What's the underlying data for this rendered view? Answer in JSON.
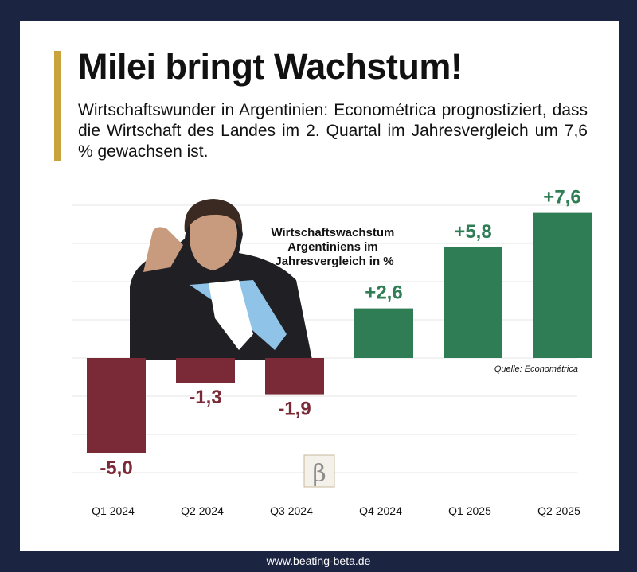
{
  "headline": "Milei bringt Wachstum!",
  "lede": "Wirtschaftswunder in Argentinien: Econométrica prognostiziert, dass die Wirtschaft des Landes im 2. Quartal im Jahresvergleich um 7,6 % gewachsen ist.",
  "footer": "www.beating-beta.de",
  "colors": {
    "negative": "#7a2a36",
    "positive": "#2f7d54",
    "accent": "#c9a43c",
    "frame": "#1b2542"
  },
  "chart_data": {
    "type": "bar",
    "title": "Wirtschaftswachstum Argentiniens im Jahresvergleich in %",
    "source": "Quelle: Econométrica",
    "categories": [
      "Q1 2024",
      "Q2 2024",
      "Q3 2024",
      "Q4 2024",
      "Q1 2025",
      "Q2 2025"
    ],
    "values": [
      -5.0,
      -1.3,
      -1.9,
      2.6,
      5.8,
      7.6
    ],
    "value_labels": [
      "-5,0",
      "-1,3",
      "-1,9",
      "+2,6",
      "+5,8",
      "+7,6"
    ],
    "ylim": [
      -6,
      8
    ],
    "grid": true,
    "legend": "none"
  }
}
